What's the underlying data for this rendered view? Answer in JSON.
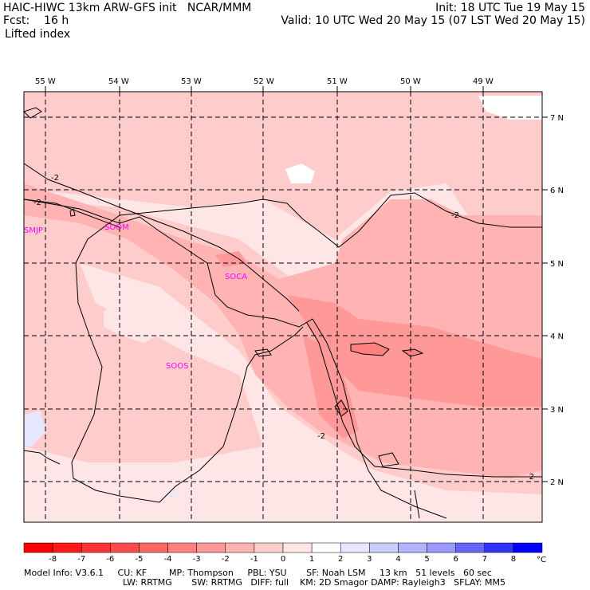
{
  "header": {
    "model_line": "HAIC-HIWC 13km ARW-GFS init   NCAR/MMM",
    "fcst_label": "Fcst:    16 h",
    "field": "Lifted index",
    "init": "Init: 18 UTC Tue 19 May 15",
    "valid": "Valid: 10 UTC Wed 20 May 15 (07 LST Wed 20 May 15)"
  },
  "map": {
    "lon_labels": [
      "55 W",
      "54 W",
      "53 W",
      "52 W",
      "51 W",
      "50 W",
      "49 W"
    ],
    "lat_labels": [
      "7 N",
      "6 N",
      "5 N",
      "4 N",
      "3 N",
      "2 N"
    ],
    "stations": [
      "SMJP",
      "SOOM",
      "SOCA",
      "SOOS"
    ],
    "contour_labels": [
      "-2",
      "-2",
      "-2",
      "-2",
      "-2"
    ]
  },
  "colorbar": {
    "ticks": [
      "-8",
      "-7",
      "-6",
      "-5",
      "-4",
      "-3",
      "-2",
      "-1",
      "0",
      "1",
      "2",
      "3",
      "4",
      "5",
      "6",
      "7",
      "8"
    ],
    "unit": "°C",
    "colors": [
      "#ff1a1a",
      "#ff3333",
      "#ff4d4d",
      "#ff6666",
      "#ff8080",
      "#ff9999",
      "#ffb3b3",
      "#ffcccc",
      "#ffe6e6",
      "#ffffff",
      "#e6e6ff",
      "#ccccff",
      "#b3b3ff",
      "#9999ff",
      "#6666ff",
      "#3333ff",
      "#0000ff"
    ]
  },
  "footer": {
    "line1": "Model Info: V3.6.1     CU: KF        MP: Thompson     PBL: YSU       SF: Noah LSM     13 km   51 levels   60 sec",
    "line2": "LW: RRTMG       SW: RRTMG   DIFF: full    KM: 2D Smagor DAMP: Rayleigh3   SFLAY: MM5"
  }
}
